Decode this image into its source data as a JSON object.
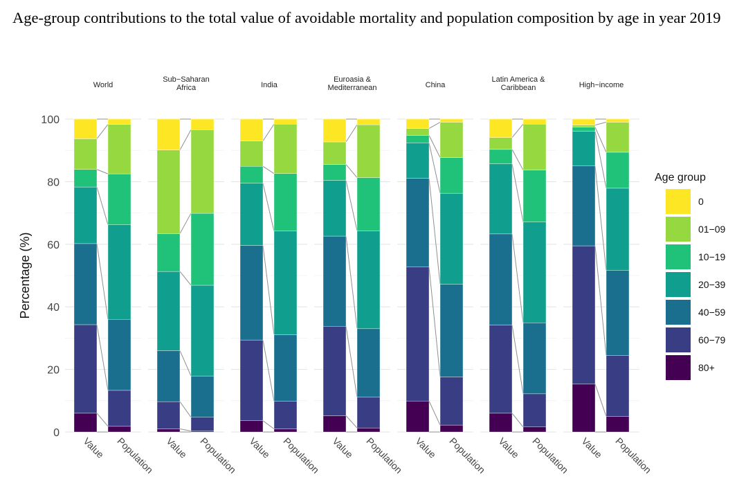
{
  "chart_data": {
    "type": "bar",
    "stacked": true,
    "title": "Age-group contributions to the total value of avoidable mortality and population composition by age in year 2019",
    "ylabel": "Percentage (%)",
    "ylim": [
      0,
      100
    ],
    "yticks": [
      0,
      20,
      40,
      60,
      80,
      100
    ],
    "grid": true,
    "categories": [
      "Value",
      "Population"
    ],
    "legend": {
      "title": "Age group",
      "placement": "right",
      "entries": [
        "0",
        "01−09",
        "10−19",
        "20−39",
        "40−59",
        "60−79",
        "80+"
      ],
      "colors": [
        "#FDE725",
        "#95D840",
        "#1FC278",
        "#109E8E",
        "#1A6E8E",
        "#383D84",
        "#440154"
      ]
    },
    "facets": [
      {
        "name": "World",
        "values": {
          "Value": {
            "80+": 6,
            "60−79": 28.3,
            "40−59": 25.9,
            "20−39": 18.1,
            "10−19": 5.6,
            "01−09": 9.8,
            "0": 6.3
          },
          "Population": {
            "80+": 1.8,
            "60−79": 11.5,
            "40−59": 22.7,
            "20−39": 30.2,
            "10−19": 16.3,
            "01−09": 15.8,
            "0": 1.7
          }
        }
      },
      {
        "name": "Sub−Saharan\nAfrica",
        "values": {
          "Value": {
            "80+": 1,
            "60−79": 8.7,
            "40−59": 16.3,
            "20−39": 25.3,
            "10−19": 12.1,
            "01−09": 26.7,
            "0": 9.9
          },
          "Population": {
            "80+": 0.3,
            "60−79": 4.4,
            "40−59": 13.2,
            "20−39": 29,
            "10−19": 23,
            "01−09": 26.7,
            "0": 3.4
          }
        }
      },
      {
        "name": "India",
        "values": {
          "Value": {
            "80+": 3.6,
            "60−79": 25.8,
            "40−59": 30.2,
            "20−39": 19.9,
            "10−19": 5.4,
            "01−09": 8.1,
            "0": 7
          },
          "Population": {
            "80+": 1,
            "60−79": 8.8,
            "40−59": 21.3,
            "20−39": 33.1,
            "10−19": 18.4,
            "01−09": 15.8,
            "0": 1.6
          }
        }
      },
      {
        "name": "Euroasia &\nMediterranean",
        "values": {
          "Value": {
            "80+": 5.2,
            "60−79": 28.6,
            "40−59": 28.8,
            "20−39": 17.8,
            "10−19": 5.1,
            "01−09": 7.2,
            "0": 7.3
          },
          "Population": {
            "80+": 1.3,
            "60−79": 9.8,
            "40−59": 21.9,
            "20−39": 31.3,
            "10−19": 17,
            "01−09": 16.9,
            "0": 1.8
          }
        }
      },
      {
        "name": "China",
        "values": {
          "Value": {
            "80+": 9.9,
            "60−79": 42.8,
            "40−59": 28.4,
            "20−39": 11.3,
            "10−19": 2.4,
            "01−09": 2.2,
            "0": 3
          },
          "Population": {
            "80+": 2.2,
            "60−79": 15.4,
            "40−59": 29.6,
            "20−39": 29.1,
            "10−19": 11.4,
            "01−09": 11.3,
            "0": 1
          }
        }
      },
      {
        "name": "Latin America &\nCaribbean",
        "values": {
          "Value": {
            "80+": 6,
            "60−79": 28.2,
            "40−59": 29.1,
            "20−39": 22.4,
            "10−19": 4.6,
            "01−09": 3.8,
            "0": 5.9
          },
          "Population": {
            "80+": 1.6,
            "60−79": 10.6,
            "40−59": 22.7,
            "20−39": 32.2,
            "10−19": 16.6,
            "01−09": 14.7,
            "0": 1.6
          }
        }
      },
      {
        "name": "High−income",
        "values": {
          "Value": {
            "80+": 15.3,
            "60−79": 44.2,
            "40−59": 25.5,
            "20−39": 11.1,
            "10−19": 1.3,
            "01−09": 0.7,
            "0": 1.9
          },
          "Population": {
            "80+": 5,
            "60−79": 19.4,
            "40−59": 27.2,
            "20−39": 26.3,
            "10−19": 11.5,
            "01−09": 9.6,
            "0": 1
          }
        }
      }
    ]
  }
}
